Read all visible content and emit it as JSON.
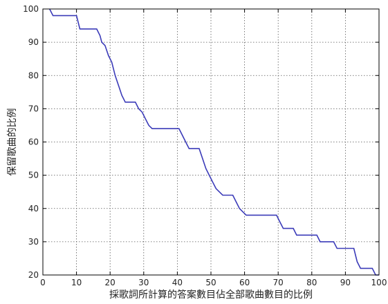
{
  "chart_data": {
    "type": "line",
    "title": "",
    "xlabel": "採歌詞所計算的答案數目佔全部歌曲數目的比例",
    "ylabel": "保留歌曲的比例",
    "xlim": [
      0,
      100
    ],
    "ylim": [
      20,
      100
    ],
    "grid": true,
    "x_ticks": [
      0,
      10,
      20,
      30,
      40,
      50,
      60,
      70,
      80,
      90,
      100
    ],
    "y_ticks": [
      20,
      30,
      40,
      50,
      60,
      70,
      80,
      90,
      100
    ],
    "series": [
      {
        "color": "#3a3ab8",
        "points": [
          [
            2,
            100
          ],
          [
            3,
            98
          ],
          [
            10,
            98
          ],
          [
            11,
            94
          ],
          [
            16,
            94
          ],
          [
            17,
            92
          ],
          [
            17.5,
            90
          ],
          [
            18.5,
            89
          ],
          [
            19.5,
            86
          ],
          [
            20.5,
            84
          ],
          [
            21.5,
            80
          ],
          [
            22.5,
            77
          ],
          [
            23.5,
            74
          ],
          [
            24.5,
            72
          ],
          [
            27.5,
            72
          ],
          [
            28.5,
            70
          ],
          [
            29.5,
            69
          ],
          [
            30.5,
            67
          ],
          [
            31.5,
            65
          ],
          [
            32.5,
            64
          ],
          [
            40.5,
            64
          ],
          [
            41.5,
            62
          ],
          [
            42.5,
            60
          ],
          [
            43.5,
            58
          ],
          [
            46.5,
            58
          ],
          [
            47.5,
            55
          ],
          [
            48.5,
            52
          ],
          [
            50.5,
            48
          ],
          [
            51.5,
            46
          ],
          [
            53.5,
            44
          ],
          [
            56.5,
            44
          ],
          [
            57.5,
            42
          ],
          [
            58.5,
            40
          ],
          [
            60.5,
            38
          ],
          [
            69.5,
            38
          ],
          [
            70.5,
            36
          ],
          [
            71.5,
            34
          ],
          [
            74.5,
            34
          ],
          [
            75.5,
            32
          ],
          [
            81.5,
            32
          ],
          [
            82.5,
            30
          ],
          [
            86.5,
            30
          ],
          [
            87.5,
            28
          ],
          [
            92.5,
            28
          ],
          [
            93.5,
            24
          ],
          [
            94.5,
            22
          ],
          [
            98,
            22
          ],
          [
            99,
            20
          ],
          [
            100,
            20
          ]
        ]
      }
    ]
  }
}
